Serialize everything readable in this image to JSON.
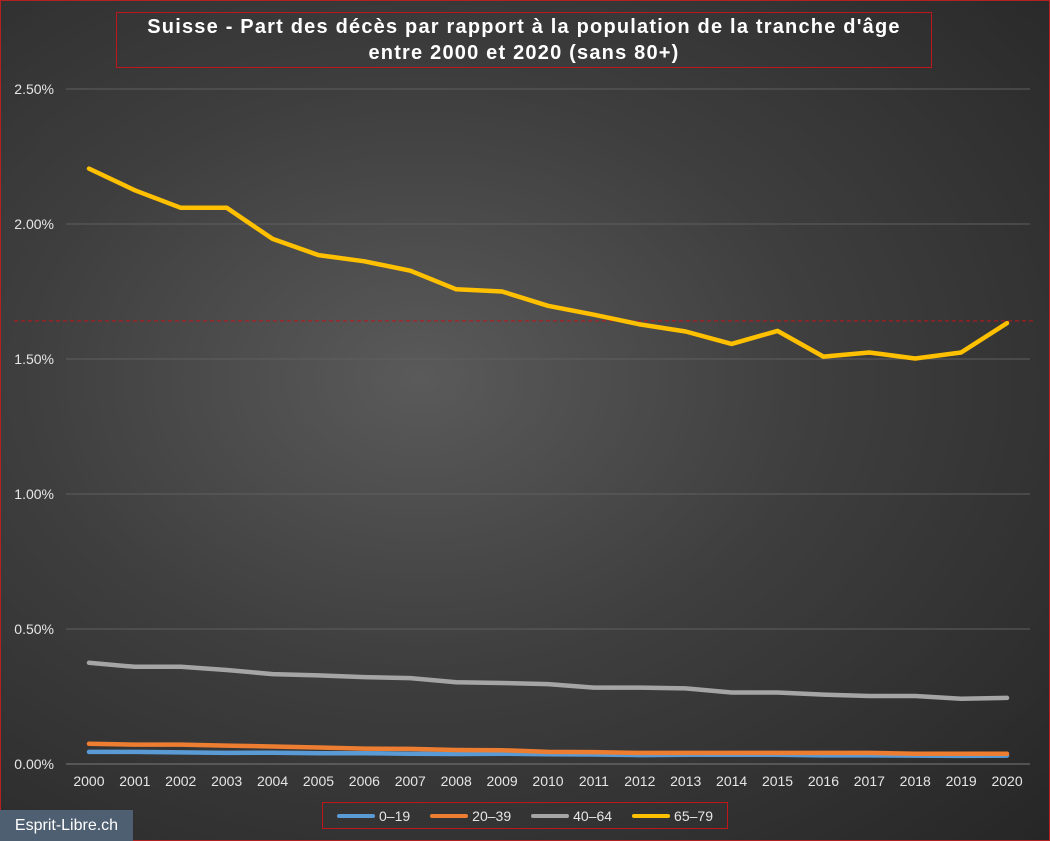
{
  "chart_data": {
    "type": "line",
    "title": "Suisse - Part des décès par rapport à la population  de la tranche d'âge entre 2000 et 2020 (sans 80+)",
    "xlabel": "",
    "ylabel": "",
    "x": [
      "2000",
      "2001",
      "2002",
      "2003",
      "2004",
      "2005",
      "2006",
      "2007",
      "2008",
      "2009",
      "2010",
      "2011",
      "2012",
      "2013",
      "2014",
      "2015",
      "2016",
      "2017",
      "2018",
      "2019",
      "2020"
    ],
    "ylim": [
      0,
      0.025
    ],
    "yticks": [
      0,
      0.005,
      0.01,
      0.015,
      0.02,
      0.025
    ],
    "ytick_labels": [
      "0.00%",
      "0.50%",
      "1.00%",
      "1.50%",
      "2.00%",
      "2.50%"
    ],
    "grid": true,
    "legend_position": "bottom",
    "reference_line": {
      "y": 0.01641,
      "color": "#c0151b",
      "style": "dashed"
    },
    "series": [
      {
        "name": "0–19",
        "color": "#5b9bd5",
        "values": [
          0.00045,
          0.00045,
          0.00043,
          0.00041,
          0.00042,
          0.0004,
          0.0004,
          0.00038,
          0.00037,
          0.00038,
          0.00036,
          0.00035,
          0.00033,
          0.00034,
          0.00034,
          0.00034,
          0.00032,
          0.00032,
          0.00031,
          0.0003,
          0.00031
        ]
      },
      {
        "name": "20–39",
        "color": "#ed7d31",
        "values": [
          0.00075,
          0.00072,
          0.00072,
          0.00068,
          0.00065,
          0.00061,
          0.00057,
          0.00056,
          0.00052,
          0.00051,
          0.00045,
          0.00044,
          0.00041,
          0.00041,
          0.00041,
          0.00041,
          0.00041,
          0.00041,
          0.00038,
          0.00038,
          0.00038
        ]
      },
      {
        "name": "40–64",
        "color": "#a5a5a5",
        "values": [
          0.00375,
          0.0036,
          0.0036,
          0.00348,
          0.00333,
          0.00328,
          0.00322,
          0.00318,
          0.00303,
          0.003,
          0.00296,
          0.00283,
          0.00283,
          0.0028,
          0.00265,
          0.00265,
          0.00257,
          0.00252,
          0.00252,
          0.00242,
          0.00245
        ]
      },
      {
        "name": "65–79",
        "color": "#ffc000",
        "values": [
          0.02205,
          0.02125,
          0.0206,
          0.0206,
          0.01945,
          0.01885,
          0.01862,
          0.01827,
          0.01758,
          0.0175,
          0.01697,
          0.01664,
          0.01628,
          0.01602,
          0.01556,
          0.01604,
          0.01509,
          0.01524,
          0.01502,
          0.01524,
          0.01633
        ]
      }
    ]
  },
  "watermark": "Esprit-Libre.ch"
}
